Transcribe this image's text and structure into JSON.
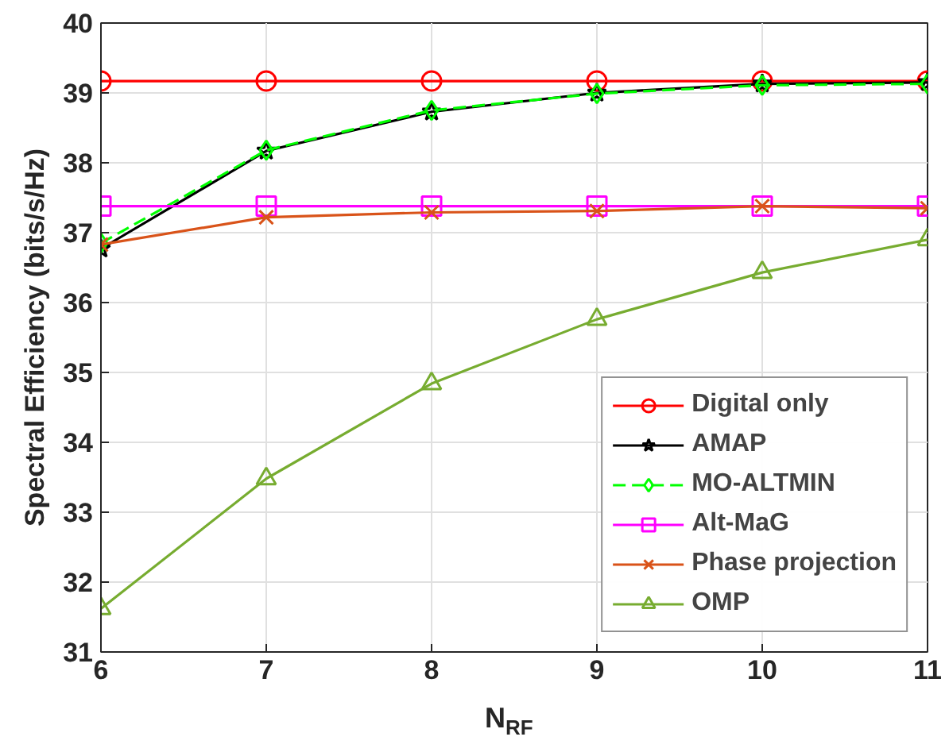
{
  "chart_data": {
    "type": "line",
    "xlabel": "N$_{RF}$",
    "ylabel": "Spectral Efficiency (bits/s/Hz)",
    "x": [
      6,
      7,
      8,
      9,
      10,
      11
    ],
    "xlim": [
      6,
      11
    ],
    "xticks": [
      6,
      7,
      8,
      9,
      10,
      11
    ],
    "ylim": [
      31,
      40
    ],
    "yticks": [
      31,
      32,
      33,
      34,
      35,
      36,
      37,
      38,
      39,
      40
    ],
    "grid": true,
    "legend": "bottom right",
    "series": [
      {
        "name": "Digital only",
        "color": "#ff0000",
        "marker": "circle",
        "line_style": "solid",
        "values": [
          39.17,
          39.17,
          39.17,
          39.17,
          39.17,
          39.17
        ]
      },
      {
        "name": "AMAP",
        "color": "#000000",
        "marker": "star",
        "line_style": "solid",
        "values": [
          36.77,
          38.17,
          38.73,
          39.0,
          39.13,
          39.15
        ]
      },
      {
        "name": "MO-ALTMIN",
        "color": "#00ff00",
        "marker": "diamond",
        "line_style": "dashed",
        "values": [
          36.85,
          38.18,
          38.75,
          38.99,
          39.11,
          39.13
        ]
      },
      {
        "name": "Alt-MaG",
        "color": "#ff00ff",
        "marker": "square",
        "line_style": "solid",
        "values": [
          37.38,
          37.38,
          37.38,
          37.38,
          37.38,
          37.38
        ]
      },
      {
        "name": "Phase projection",
        "color": "#d95319",
        "marker": "cross",
        "line_style": "solid",
        "values": [
          36.83,
          37.22,
          37.29,
          37.31,
          37.38,
          37.35
        ]
      },
      {
        "name": "OMP",
        "color": "#77ac30",
        "marker": "triangle",
        "line_style": "solid",
        "values": [
          31.62,
          33.48,
          34.84,
          35.76,
          36.43,
          36.9
        ]
      }
    ]
  }
}
